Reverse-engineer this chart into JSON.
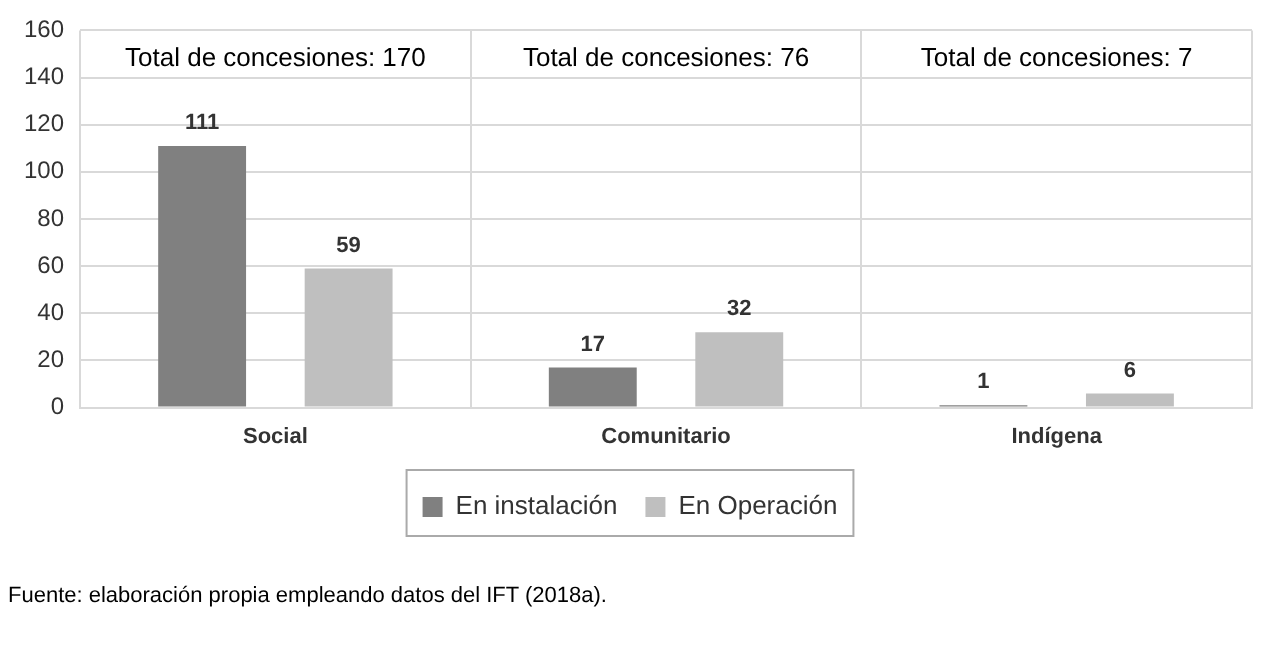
{
  "chart_data": {
    "type": "bar",
    "categories": [
      "Social",
      "Comunitario",
      "Indígena"
    ],
    "series": [
      {
        "name": "En instalación",
        "color": "#808080",
        "values": [
          111,
          17,
          1
        ]
      },
      {
        "name": "En Operación",
        "color": "#bfbfbf",
        "values": [
          59,
          32,
          6
        ]
      }
    ],
    "ylim": [
      0,
      160
    ],
    "yticks": [
      0,
      20,
      40,
      60,
      80,
      100,
      120,
      140,
      160
    ],
    "grid": true,
    "legend": "bottom",
    "data_labels": true,
    "annotations": [
      "Total de concesiones: 170",
      "Total de concesiones: 76",
      "Total de concesiones: 7",
      "Fuente: elaboración propia empleando datos del IFT (2018a)."
    ]
  }
}
